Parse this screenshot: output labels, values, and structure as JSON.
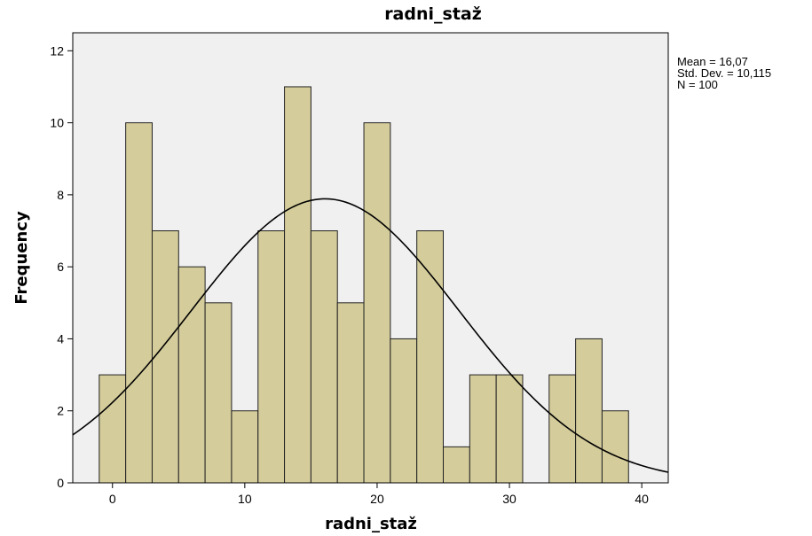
{
  "chart_data": {
    "type": "bar",
    "title": "radni_staž",
    "xlabel": "radni_staž",
    "ylabel": "Frequency",
    "bin_width": 2,
    "bins": [
      {
        "start": -1,
        "end": 1,
        "count": 3
      },
      {
        "start": 1,
        "end": 3,
        "count": 10
      },
      {
        "start": 3,
        "end": 5,
        "count": 7
      },
      {
        "start": 5,
        "end": 7,
        "count": 6
      },
      {
        "start": 7,
        "end": 9,
        "count": 5
      },
      {
        "start": 9,
        "end": 11,
        "count": 2
      },
      {
        "start": 11,
        "end": 13,
        "count": 7
      },
      {
        "start": 13,
        "end": 15,
        "count": 11
      },
      {
        "start": 15,
        "end": 17,
        "count": 7
      },
      {
        "start": 17,
        "end": 19,
        "count": 5
      },
      {
        "start": 19,
        "end": 21,
        "count": 10
      },
      {
        "start": 21,
        "end": 23,
        "count": 4
      },
      {
        "start": 23,
        "end": 25,
        "count": 7
      },
      {
        "start": 25,
        "end": 27,
        "count": 1
      },
      {
        "start": 27,
        "end": 29,
        "count": 3
      },
      {
        "start": 29,
        "end": 31,
        "count": 3
      },
      {
        "start": 31,
        "end": 33,
        "count": 0
      },
      {
        "start": 33,
        "end": 35,
        "count": 3
      },
      {
        "start": 35,
        "end": 37,
        "count": 4
      },
      {
        "start": 37,
        "end": 39,
        "count": 2
      }
    ],
    "xlim": [
      -3,
      42
    ],
    "ylim": [
      0,
      12.5
    ],
    "xticks": [
      0,
      10,
      20,
      30,
      40
    ],
    "yticks": [
      0,
      2,
      4,
      6,
      8,
      10,
      12
    ],
    "x_tick_labels": [
      "0",
      "10",
      "20",
      "30",
      "40"
    ],
    "y_tick_labels": [
      "0",
      "2",
      "4",
      "6",
      "8",
      "10",
      "12"
    ],
    "normal_curve": {
      "mean": 16.07,
      "std_dev": 10.115,
      "n": 100
    },
    "stats_text": [
      "Mean = 16,07",
      "Std. Dev. = 10,115",
      "N = 100"
    ],
    "grid": false,
    "colors": {
      "bar_fill": "#d4cc9b",
      "bar_stroke": "#222222",
      "plot_background": "#f0f0f0",
      "curve": "#000000"
    }
  }
}
